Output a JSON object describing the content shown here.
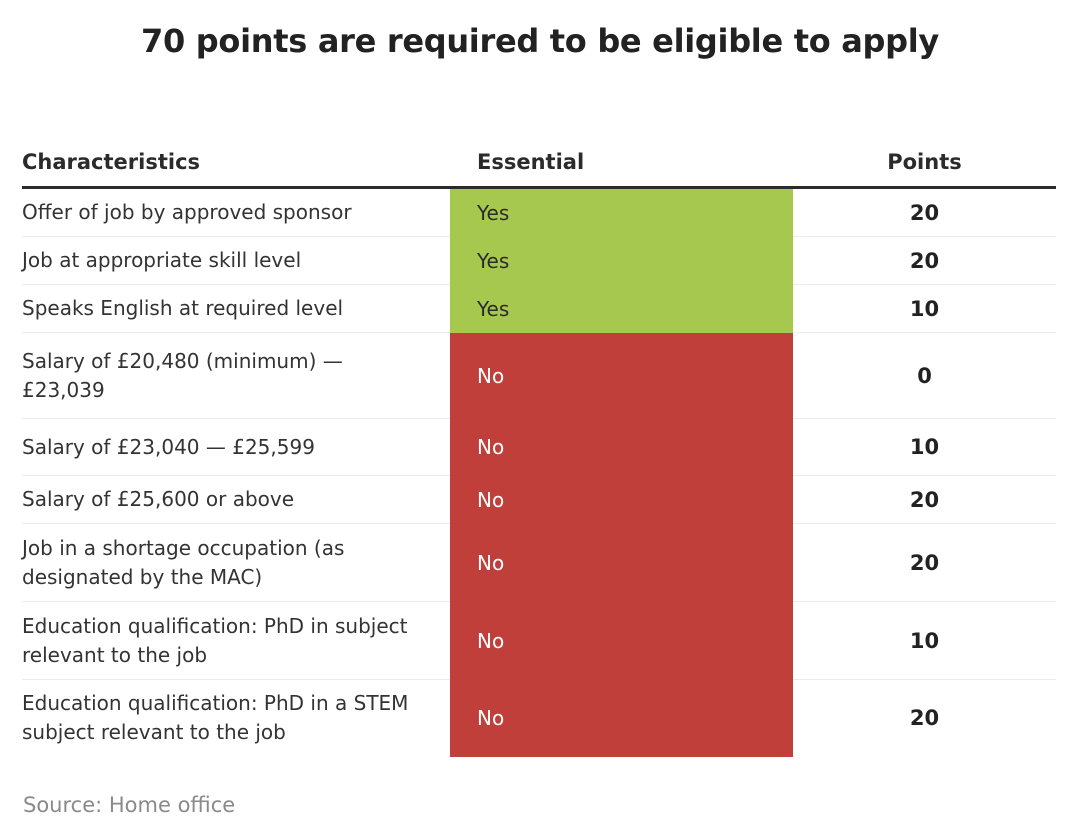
{
  "title": "70 points are required to be eligible to apply",
  "colors": {
    "yes": "#a6c84f",
    "no": "#c13f3b"
  },
  "chart_data": {
    "type": "table",
    "columns": [
      "Characteristics",
      "Essential",
      "Points"
    ],
    "rows": [
      {
        "characteristic": "Offer of job by approved sponsor",
        "essential": "Yes",
        "points": "20"
      },
      {
        "characteristic": "Job at appropriate skill level",
        "essential": "Yes",
        "points": "20"
      },
      {
        "characteristic": "Speaks English at required level",
        "essential": "Yes",
        "points": "10"
      },
      {
        "characteristic": "Salary of £20,480 (minimum) — £23,039",
        "essential": "No",
        "points": "0"
      },
      {
        "characteristic": "Salary of £23,040 — £25,599",
        "essential": "No",
        "points": "10"
      },
      {
        "characteristic": "Salary of £25,600 or above",
        "essential": "No",
        "points": "20"
      },
      {
        "characteristic": "Job in a shortage occupation (as designated by the MAC)",
        "essential": "No",
        "points": "20"
      },
      {
        "characteristic": "Education qualification: PhD in subject relevant to the job",
        "essential": "No",
        "points": "10"
      },
      {
        "characteristic": "Education qualification: PhD in a STEM subject relevant to the job",
        "essential": "No",
        "points": "20"
      }
    ]
  },
  "source": "Source: Home office"
}
